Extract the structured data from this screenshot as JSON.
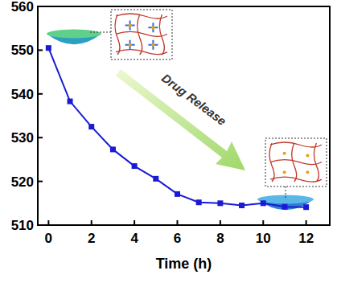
{
  "chart_data": {
    "type": "line",
    "x_label": "Time (h)",
    "annotations": [
      "Drug Release"
    ],
    "x": [
      0,
      1,
      2,
      3,
      4,
      5,
      6,
      7,
      8,
      9,
      10,
      11,
      12
    ],
    "values": [
      550.5,
      538.3,
      532.5,
      527.3,
      523.5,
      520.6,
      517.1,
      515.2,
      515.0,
      514.5,
      515.0,
      514.2,
      514.1
    ],
    "color": "#1a1ad6",
    "marker": "square",
    "xlim": [
      -0.5,
      13.1
    ],
    "ylim": [
      510,
      560
    ],
    "xticks": [
      0,
      2,
      4,
      6,
      8,
      10,
      12
    ],
    "yticks": [
      510,
      520,
      530,
      540,
      550,
      560
    ],
    "grid": false
  }
}
